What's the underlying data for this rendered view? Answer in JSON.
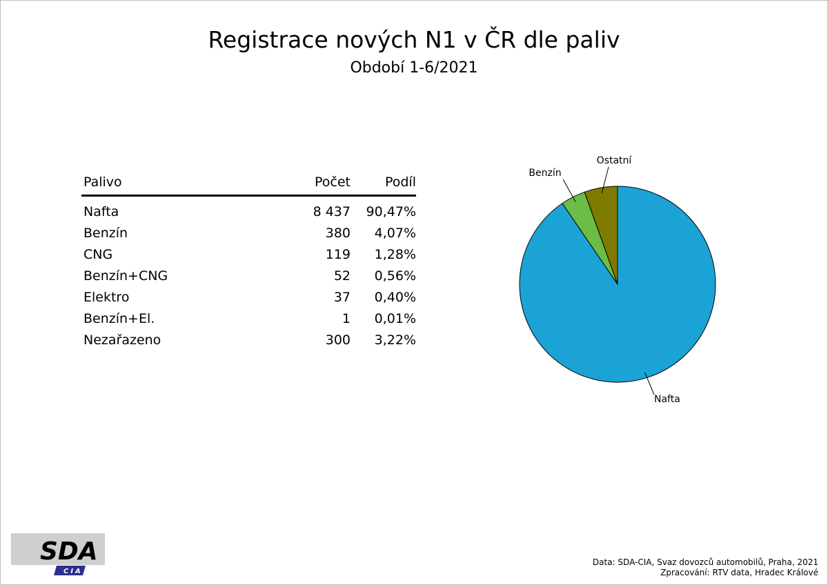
{
  "title": "Registrace nových N1 v ČR dle paliv",
  "subtitle": "Období 1-6/2021",
  "table": {
    "headers": [
      "Palivo",
      "Počet",
      "Podíl"
    ],
    "rows": [
      {
        "name": "Nafta",
        "count": "8 437",
        "share": "90,47%"
      },
      {
        "name": "Benzín",
        "count": "380",
        "share": "4,07%"
      },
      {
        "name": "CNG",
        "count": "119",
        "share": "1,28%"
      },
      {
        "name": "Benzín+CNG",
        "count": "52",
        "share": "0,56%"
      },
      {
        "name": "Elektro",
        "count": "37",
        "share": "0,40%"
      },
      {
        "name": "Benzín+El.",
        "count": "1",
        "share": "0,01%"
      },
      {
        "name": "Nezařazeno",
        "count": "300",
        "share": "3,22%"
      }
    ]
  },
  "chart_data": {
    "type": "pie",
    "slices": [
      {
        "label": "Nafta",
        "value": 90.47,
        "color": "#1ba3d6"
      },
      {
        "label": "Benzín",
        "value": 4.07,
        "color": "#6cbd45"
      },
      {
        "label": "Ostatní",
        "value": 5.47,
        "color": "#7f7a00"
      }
    ],
    "start_angle": "12 o'clock, clockwise",
    "legend": "none"
  },
  "logo": {
    "text": "SDA",
    "subtext": "CIA",
    "accent_color": "#2b2f8f"
  },
  "footer": {
    "line1": "Data: SDA-CIA, Svaz dovozců automobilů, Praha, 2021",
    "line2": "Zpracování: RTV data, Hradec Králové"
  }
}
